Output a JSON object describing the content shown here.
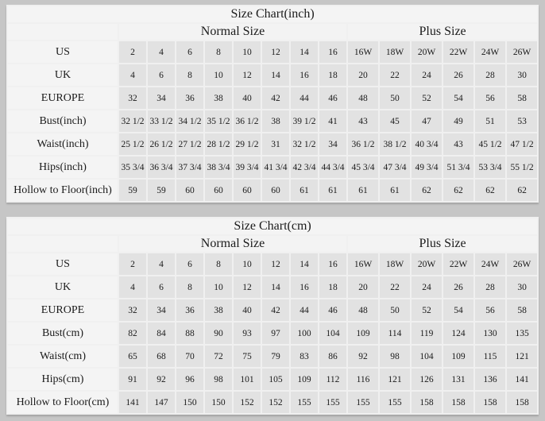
{
  "page": {
    "background_color": "#c6c6c6",
    "table_grid_color": "#f0f0f0",
    "data_cell_color": "#e2e2e2",
    "label_cell_color": "#f4f4f4",
    "text_color": "#1b1b1b"
  },
  "chart_data": [
    {
      "type": "table",
      "title": "Size Chart(inch)",
      "column_groups": [
        {
          "label": "Normal Size",
          "span": 8
        },
        {
          "label": "Plus Size",
          "span": 6
        }
      ],
      "rows": [
        {
          "label": "US",
          "values": [
            "2",
            "4",
            "6",
            "8",
            "10",
            "12",
            "14",
            "16",
            "16W",
            "18W",
            "20W",
            "22W",
            "24W",
            "26W"
          ]
        },
        {
          "label": "UK",
          "values": [
            "4",
            "6",
            "8",
            "10",
            "12",
            "14",
            "16",
            "18",
            "20",
            "22",
            "24",
            "26",
            "28",
            "30"
          ]
        },
        {
          "label": "EUROPE",
          "values": [
            "32",
            "34",
            "36",
            "38",
            "40",
            "42",
            "44",
            "46",
            "48",
            "50",
            "52",
            "54",
            "56",
            "58"
          ]
        },
        {
          "label": "Bust(inch)",
          "values": [
            "32 1/2",
            "33 1/2",
            "34 1/2",
            "35 1/2",
            "36 1/2",
            "38",
            "39 1/2",
            "41",
            "43",
            "45",
            "47",
            "49",
            "51",
            "53"
          ]
        },
        {
          "label": "Waist(inch)",
          "values": [
            "25 1/2",
            "26 1/2",
            "27 1/2",
            "28 1/2",
            "29 1/2",
            "31",
            "32 1/2",
            "34",
            "36 1/2",
            "38 1/2",
            "40 3/4",
            "43",
            "45 1/2",
            "47 1/2"
          ]
        },
        {
          "label": "Hips(inch)",
          "values": [
            "35 3/4",
            "36 3/4",
            "37 3/4",
            "38 3/4",
            "39 3/4",
            "41 3/4",
            "42 3/4",
            "44 3/4",
            "45 3/4",
            "47 3/4",
            "49 3/4",
            "51 3/4",
            "53 3/4",
            "55 1/2"
          ]
        },
        {
          "label": "Hollow to Floor(inch)",
          "values": [
            "59",
            "59",
            "60",
            "60",
            "60",
            "60",
            "61",
            "61",
            "61",
            "61",
            "62",
            "62",
            "62",
            "62"
          ]
        }
      ]
    },
    {
      "type": "table",
      "title": "Size Chart(cm)",
      "column_groups": [
        {
          "label": "Normal Size",
          "span": 8
        },
        {
          "label": "Plus Size",
          "span": 6
        }
      ],
      "rows": [
        {
          "label": "US",
          "values": [
            "2",
            "4",
            "6",
            "8",
            "10",
            "12",
            "14",
            "16",
            "16W",
            "18W",
            "20W",
            "22W",
            "24W",
            "26W"
          ]
        },
        {
          "label": "UK",
          "values": [
            "4",
            "6",
            "8",
            "10",
            "12",
            "14",
            "16",
            "18",
            "20",
            "22",
            "24",
            "26",
            "28",
            "30"
          ]
        },
        {
          "label": "EUROPE",
          "values": [
            "32",
            "34",
            "36",
            "38",
            "40",
            "42",
            "44",
            "46",
            "48",
            "50",
            "52",
            "54",
            "56",
            "58"
          ]
        },
        {
          "label": "Bust(cm)",
          "values": [
            "82",
            "84",
            "88",
            "90",
            "93",
            "97",
            "100",
            "104",
            "109",
            "114",
            "119",
            "124",
            "130",
            "135"
          ]
        },
        {
          "label": "Waist(cm)",
          "values": [
            "65",
            "68",
            "70",
            "72",
            "75",
            "79",
            "83",
            "86",
            "92",
            "98",
            "104",
            "109",
            "115",
            "121"
          ]
        },
        {
          "label": "Hips(cm)",
          "values": [
            "91",
            "92",
            "96",
            "98",
            "101",
            "105",
            "109",
            "112",
            "116",
            "121",
            "126",
            "131",
            "136",
            "141"
          ]
        },
        {
          "label": "Hollow to Floor(cm)",
          "values": [
            "141",
            "147",
            "150",
            "150",
            "152",
            "152",
            "155",
            "155",
            "155",
            "155",
            "158",
            "158",
            "158",
            "158"
          ]
        }
      ]
    }
  ]
}
